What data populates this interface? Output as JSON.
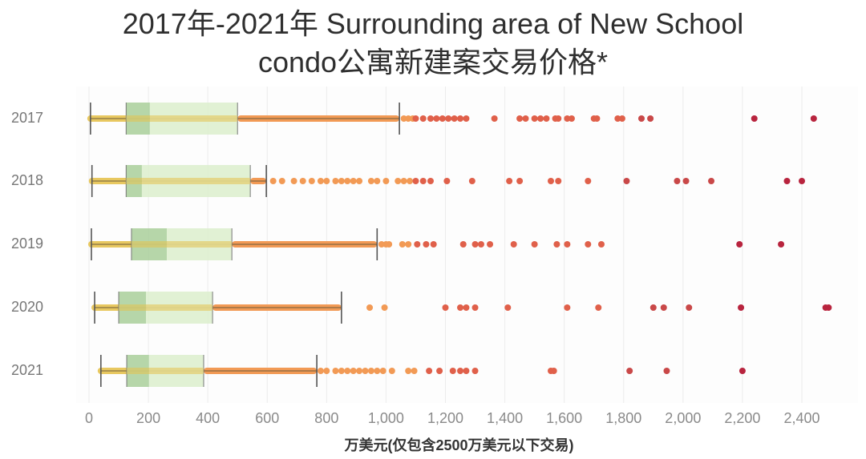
{
  "title": {
    "line1": "2017年-2021年 Surrounding area of New School",
    "line2": "condo公寓新建案交易价格*"
  },
  "colors": {
    "box_lower": "#a9cf9a",
    "box_upper": "#dcefcc",
    "whisker_band": "#e8c860",
    "dots_low": "#f29a55",
    "dots_mid": "#e0604a",
    "dots_high": "#b8243e",
    "whisker_line": "#555555",
    "grid": "#ececec"
  },
  "chart_data": {
    "type": "boxplot",
    "title": "2017年-2021年 Surrounding area of New School condo公寓新建案交易价格*",
    "xlabel": "万美元(仅包含2500万美元以下交易)",
    "ylabel": "",
    "orientation": "horizontal",
    "xlim": [
      0,
      2500
    ],
    "xticks": [
      0,
      200,
      400,
      600,
      800,
      1000,
      1200,
      1400,
      1600,
      1800,
      2000,
      2200,
      2400
    ],
    "xtick_labels": [
      "0",
      "200",
      "400",
      "600",
      "800",
      "1,000",
      "1,200",
      "1,400",
      "1,600",
      "1,800",
      "2,000",
      "2,200",
      "2,400"
    ],
    "grid": "vertical",
    "categories": [
      "2017",
      "2018",
      "2019",
      "2020",
      "2021"
    ],
    "series": [
      {
        "name": "2017",
        "whisker_low": 5,
        "q1": 125,
        "median": 205,
        "q3": 500,
        "whisker_high": 1045,
        "outliers": [
          1060,
          1075,
          1090,
          1100,
          1125,
          1150,
          1170,
          1190,
          1210,
          1230,
          1250,
          1270,
          1365,
          1450,
          1470,
          1500,
          1520,
          1540,
          1570,
          1580,
          1610,
          1625,
          1700,
          1710,
          1780,
          1795,
          1860,
          1890,
          2240,
          2440
        ]
      },
      {
        "name": "2018",
        "whisker_low": 10,
        "q1": 125,
        "median": 178,
        "q3": 543,
        "whisker_high": 597,
        "outliers": [
          620,
          650,
          690,
          720,
          750,
          780,
          800,
          830,
          850,
          870,
          890,
          910,
          950,
          970,
          1000,
          1040,
          1060,
          1080,
          1100,
          1125,
          1150,
          1205,
          1290,
          1415,
          1450,
          1555,
          1580,
          1680,
          1810,
          1980,
          2010,
          2095,
          2350,
          2400
        ]
      },
      {
        "name": "2019",
        "whisker_low": 8,
        "q1": 143,
        "median": 262,
        "q3": 481,
        "whisker_high": 970,
        "outliers": [
          985,
          1000,
          1010,
          1055,
          1075,
          1105,
          1135,
          1160,
          1260,
          1300,
          1320,
          1350,
          1430,
          1500,
          1575,
          1610,
          1680,
          1725,
          2190,
          2330
        ]
      },
      {
        "name": "2020",
        "whisker_low": 19,
        "q1": 100,
        "median": 192,
        "q3": 416,
        "whisker_high": 850,
        "outliers": [
          945,
          995,
          1200,
          1250,
          1270,
          1300,
          1410,
          1610,
          1715,
          1900,
          1935,
          2020,
          2195,
          2480,
          2490
        ]
      },
      {
        "name": "2021",
        "whisker_low": 40,
        "q1": 127,
        "median": 202,
        "q3": 386,
        "whisker_high": 767,
        "outliers": [
          780,
          800,
          830,
          850,
          870,
          890,
          910,
          930,
          950,
          970,
          990,
          1020,
          1075,
          1095,
          1145,
          1180,
          1225,
          1250,
          1270,
          1300,
          1555,
          1565,
          1820,
          1945,
          2200
        ]
      }
    ]
  }
}
